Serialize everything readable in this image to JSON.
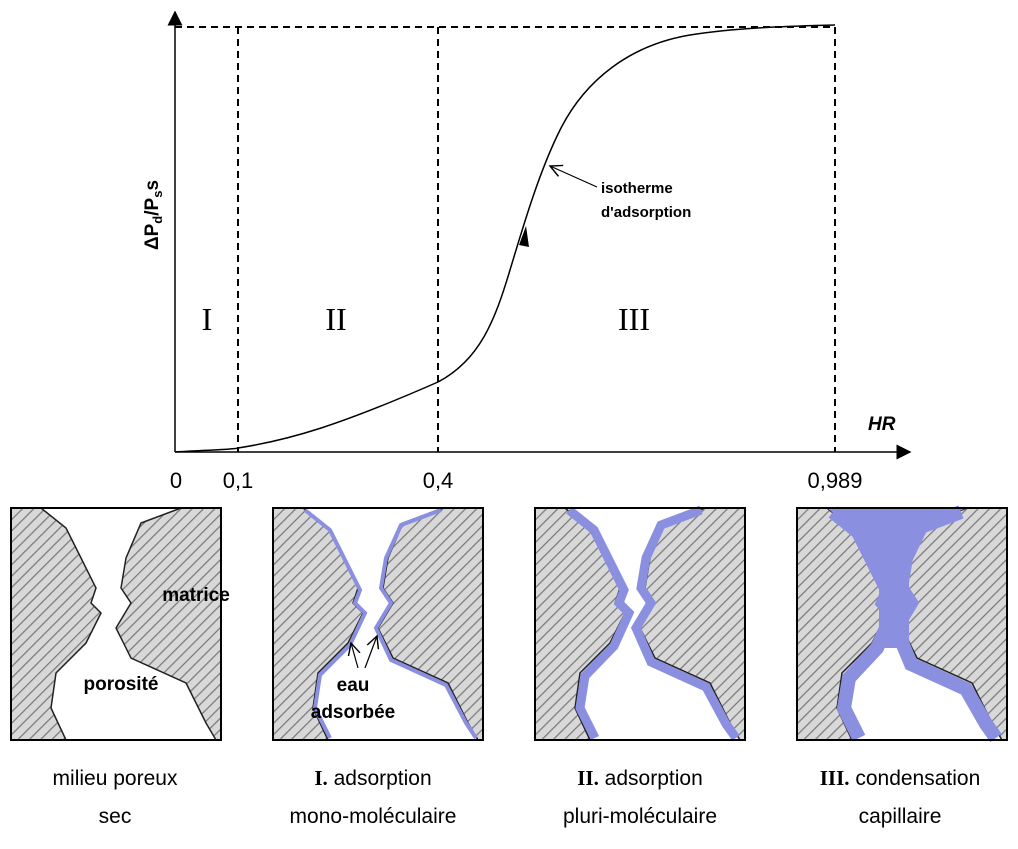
{
  "axes": {
    "y_label": [
      "ΔP",
      "d",
      "/P",
      "s",
      "s"
    ],
    "x_label": "HR",
    "ticks": [
      "0",
      "0,1",
      "0,4",
      "0,989"
    ]
  },
  "regions": [
    "I",
    "II",
    "III"
  ],
  "annotation": [
    "isotherme",
    "d'adsorption"
  ],
  "panels": [
    {
      "labels": [
        "matrice",
        "porosité"
      ],
      "caption": {
        "lead": "",
        "text": "milieu poreux",
        "line2": "sec"
      }
    },
    {
      "labels": [
        "eau",
        "adsorbée"
      ],
      "caption": {
        "lead": "I.",
        "text": " adsorption",
        "line2": "mono-moléculaire"
      }
    },
    {
      "labels": [],
      "caption": {
        "lead": "II.",
        "text": " adsorption",
        "line2": "pluri-moléculaire"
      }
    },
    {
      "labels": [],
      "caption": {
        "lead": "III.",
        "text": " condensation",
        "line2": "capillaire"
      }
    }
  ]
}
